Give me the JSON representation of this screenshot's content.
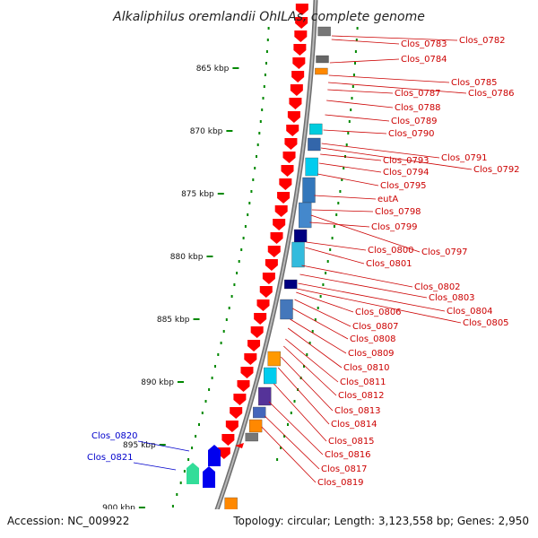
{
  "title": "Alkaliphilus oremlandii OhILAs, complete genome",
  "footer": {
    "accession": "Accession: NC_009922",
    "topology": "Topology: circular; Length: 3,123,558 bp; Genes: 2,950"
  },
  "colors": {
    "forward_arrow": "#ff0000",
    "reverse_gene": "#0000ee",
    "label_forward": "#cc0000",
    "label_reverse": "#0000cc",
    "tick_dots": "#008800",
    "backbone": "#888888"
  },
  "kbp_ticks": [
    "865 kbp",
    "870 kbp",
    "875 kbp",
    "880 kbp",
    "885 kbp",
    "890 kbp",
    "895 kbp",
    "900 kbp"
  ],
  "gene_labels_right": [
    "Clos_0782",
    "Clos_0783",
    "Clos_0784",
    "Clos_0785",
    "Clos_0786",
    "Clos_0787",
    "Clos_0788",
    "Clos_0789",
    "Clos_0790",
    "Clos_0791",
    "Clos_0792",
    "Clos_0793",
    "Clos_0794",
    "Clos_0795",
    "eutA",
    "Clos_0797",
    "Clos_0798",
    "Clos_0799",
    "Clos_0800",
    "Clos_0801",
    "Clos_0802",
    "Clos_0803",
    "Clos_0804",
    "Clos_0805",
    "Clos_0806",
    "Clos_0807",
    "Clos_0808",
    "Clos_0809",
    "Clos_0810",
    "Clos_0811",
    "Clos_0812",
    "Clos_0813",
    "Clos_0814",
    "Clos_0815",
    "Clos_0816",
    "Clos_0817",
    "Clos_0819"
  ],
  "gene_labels_left": [
    "Clos_0820",
    "Clos_0821"
  ]
}
